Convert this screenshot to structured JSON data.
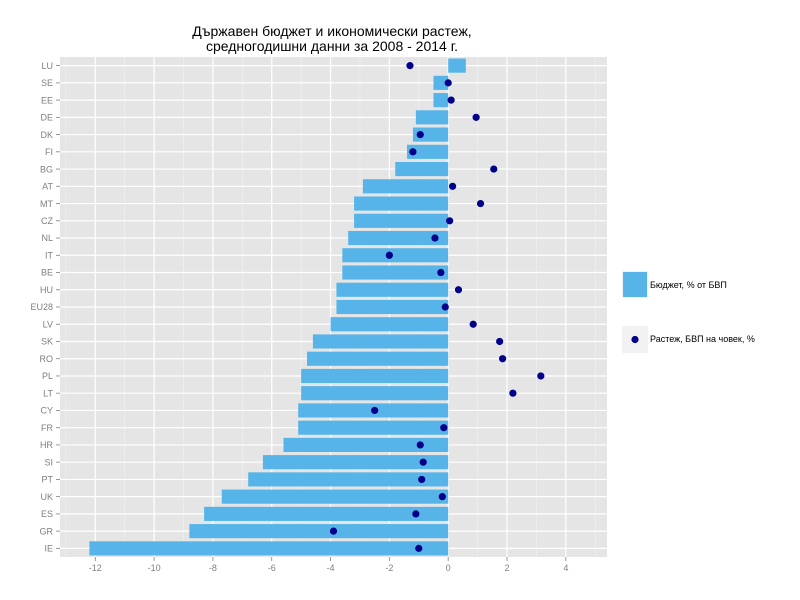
{
  "chart_data": {
    "type": "bar",
    "orientation": "horizontal",
    "title": [
      "Държавен бюджет и икономически растеж,",
      "средногодишни данни за 2008 - 2014 г."
    ],
    "xlabel": "",
    "ylabel": "",
    "xlim": [
      -13.2,
      5.4
    ],
    "xticks": [
      -12,
      -10,
      -8,
      -6,
      -4,
      -2,
      0,
      2,
      4
    ],
    "grid": true,
    "legend_position": "right",
    "categories": [
      "LU",
      "SE",
      "EE",
      "DE",
      "DK",
      "FI",
      "BG",
      "AT",
      "MT",
      "CZ",
      "NL",
      "IT",
      "BE",
      "HU",
      "EU28",
      "LV",
      "SK",
      "RO",
      "PL",
      "LT",
      "CY",
      "FR",
      "HR",
      "SI",
      "PT",
      "UK",
      "ES",
      "GR",
      "IE"
    ],
    "series": [
      {
        "name": "Бюджет, % от БВП",
        "kind": "bar",
        "color": "#56b4e9",
        "values": [
          0.6,
          -0.5,
          -0.5,
          -1.1,
          -1.2,
          -1.4,
          -1.8,
          -2.9,
          -3.2,
          -3.2,
          -3.4,
          -3.6,
          -3.6,
          -3.8,
          -3.8,
          -4.0,
          -4.6,
          -4.8,
          -5.0,
          -5.0,
          -5.1,
          -5.1,
          -5.6,
          -6.3,
          -6.8,
          -7.7,
          -8.3,
          -8.8,
          -12.2
        ]
      },
      {
        "name": "Растеж, БВП на човек, %",
        "kind": "point",
        "color": "#00008b",
        "values": [
          -1.3,
          0.0,
          0.1,
          0.95,
          -0.95,
          -1.2,
          1.55,
          0.15,
          1.1,
          0.05,
          -0.45,
          -2.0,
          -0.25,
          0.35,
          -0.1,
          0.85,
          1.75,
          1.85,
          3.15,
          2.2,
          -2.5,
          -0.15,
          -0.95,
          -0.85,
          -0.9,
          -0.2,
          -1.1,
          -3.9,
          -1.0
        ]
      }
    ]
  }
}
